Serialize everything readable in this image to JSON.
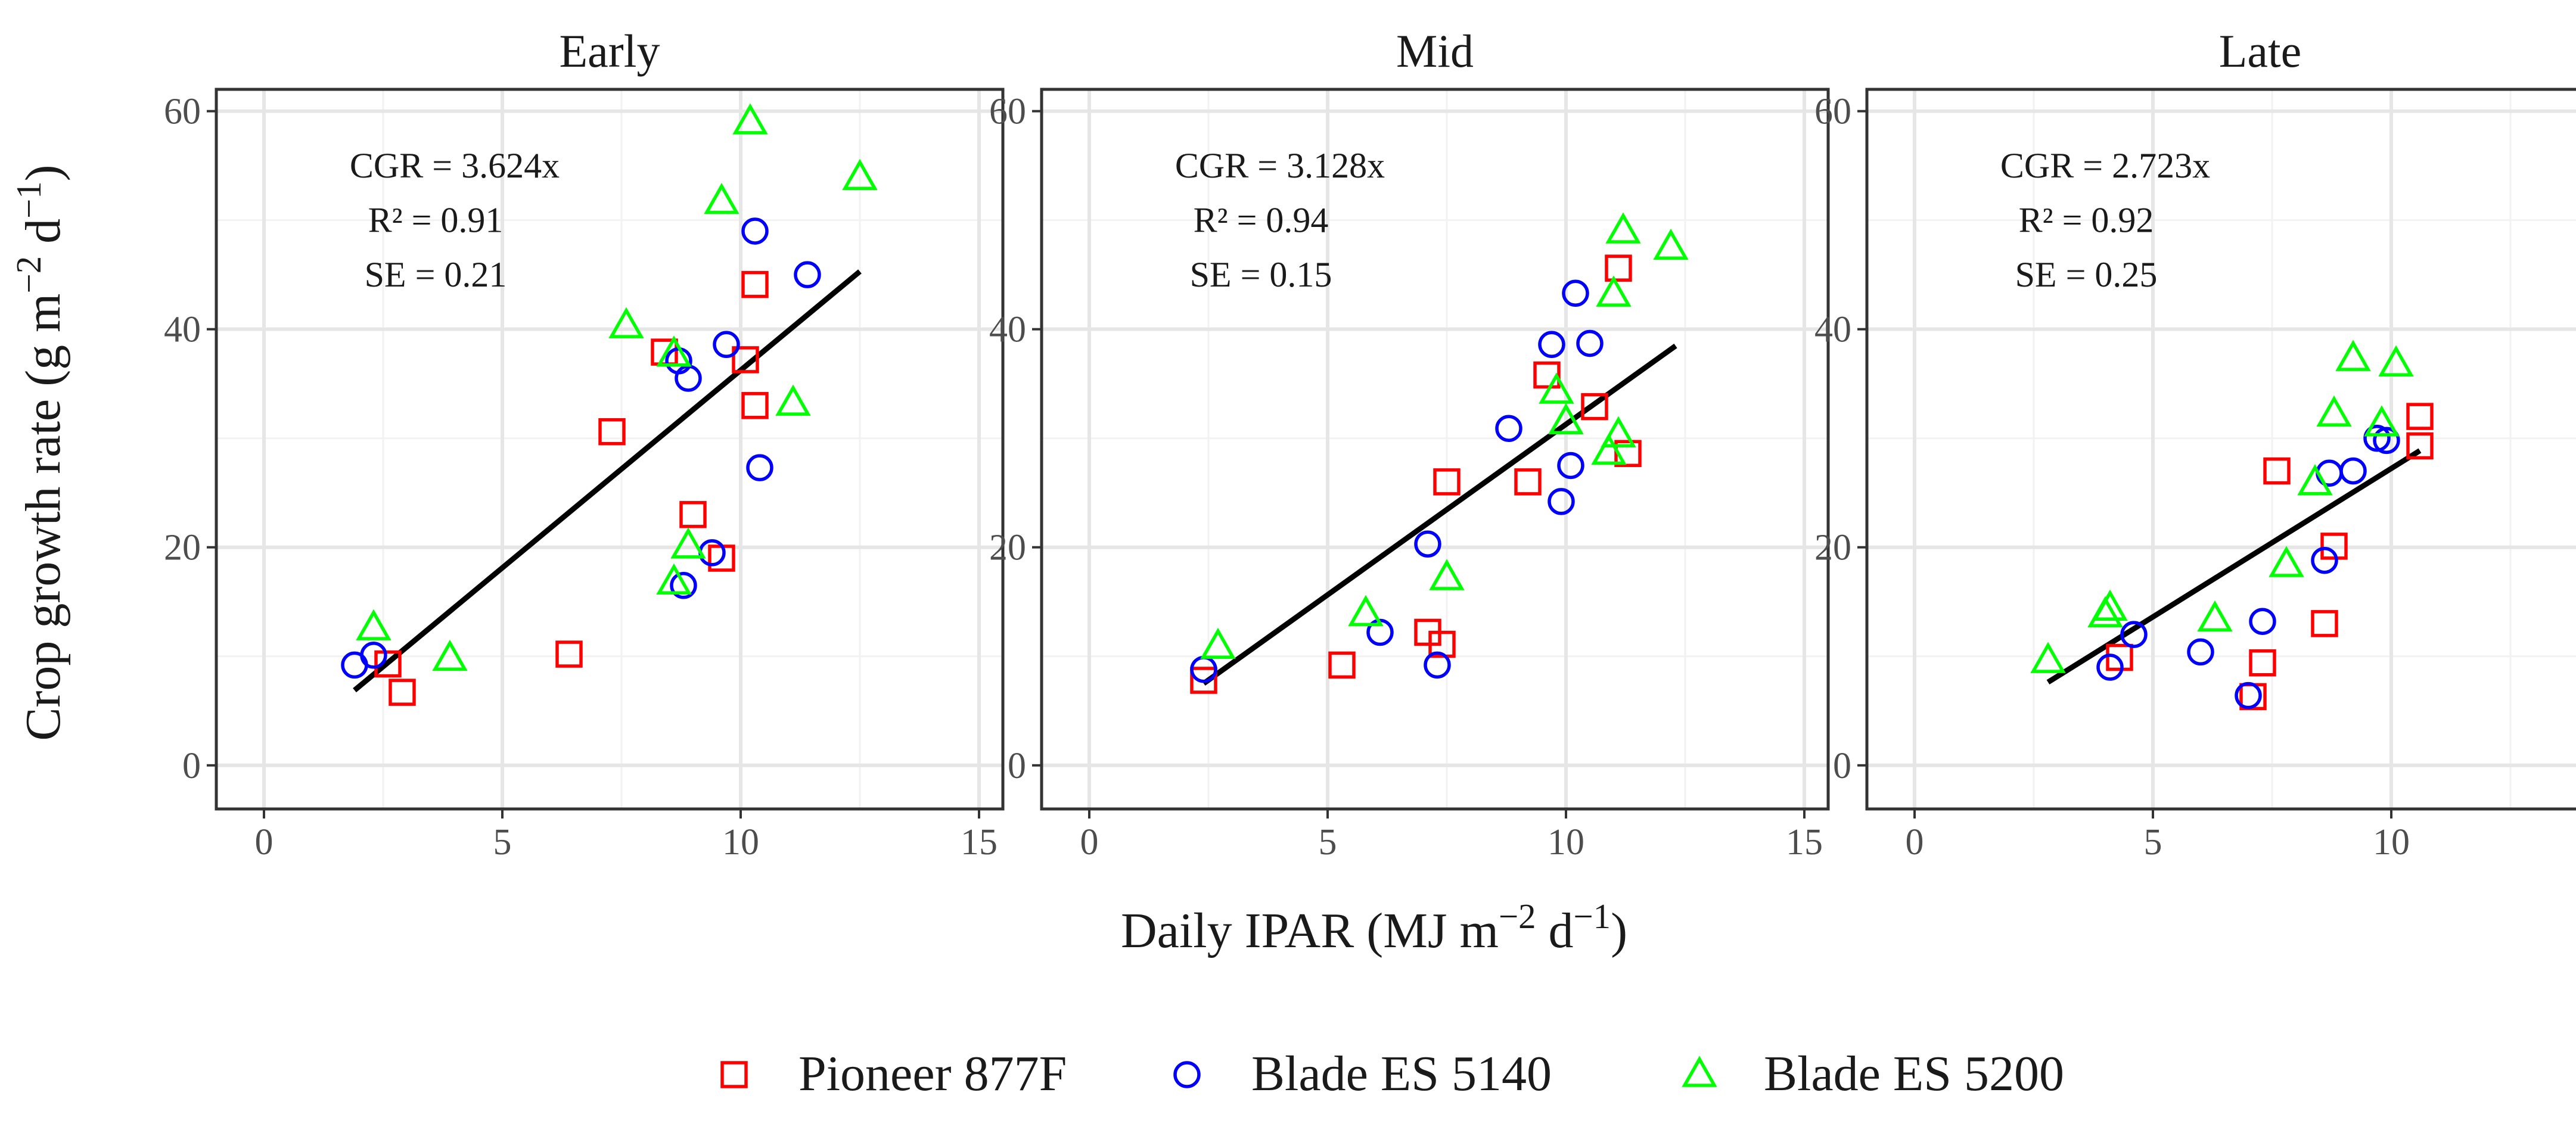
{
  "chart_data": {
    "type": "scatter",
    "xlabel": "Daily IPAR (MJ m⁻² d⁻¹)",
    "ylabel": "Crop growth rate (g m⁻² d⁻¹)",
    "xlim": [
      -1,
      15.5
    ],
    "ylim": [
      -4,
      62
    ],
    "xticks": [
      0,
      5,
      10,
      15
    ],
    "yticks": [
      0,
      20,
      40,
      60
    ],
    "grid": true,
    "legend": {
      "position": "bottom",
      "entries": [
        {
          "name": "Pioneer 877F",
          "marker": "square",
          "color": "#ff0000"
        },
        {
          "name": "Blade ES 5140",
          "marker": "circle",
          "color": "#0000ff"
        },
        {
          "name": "Blade ES 5200",
          "marker": "triangle",
          "color": "#00ff00"
        }
      ]
    },
    "panels": [
      {
        "title": "Early",
        "annotation": [
          "CGR = 3.624x",
          "R² = 0.91",
          "SE = 0.21"
        ],
        "slope": 3.624,
        "fit_x": [
          1.9,
          12.5
        ],
        "series": [
          {
            "name": "Pioneer 877F",
            "points": [
              [
                2.6,
                9.3
              ],
              [
                2.9,
                6.7
              ],
              [
                6.4,
                10.2
              ],
              [
                7.3,
                30.6
              ],
              [
                8.4,
                37.9
              ],
              [
                9.0,
                23.0
              ],
              [
                9.6,
                19.0
              ],
              [
                10.1,
                37.2
              ],
              [
                10.3,
                33.0
              ],
              [
                10.3,
                44.1
              ]
            ]
          },
          {
            "name": "Blade ES 5140",
            "points": [
              [
                1.9,
                9.2
              ],
              [
                2.3,
                10.1
              ],
              [
                8.7,
                37.1
              ],
              [
                8.9,
                35.5
              ],
              [
                8.8,
                16.5
              ],
              [
                9.4,
                19.5
              ],
              [
                9.7,
                38.6
              ],
              [
                10.3,
                49.0
              ],
              [
                10.4,
                27.3
              ],
              [
                11.4,
                45.0
              ]
            ]
          },
          {
            "name": "Blade ES 5200",
            "points": [
              [
                2.3,
                12.6
              ],
              [
                3.9,
                9.8
              ],
              [
                7.6,
                40.3
              ],
              [
                8.6,
                37.7
              ],
              [
                8.6,
                16.8
              ],
              [
                8.9,
                20.1
              ],
              [
                9.6,
                51.7
              ],
              [
                10.2,
                59.0
              ],
              [
                11.1,
                33.2
              ],
              [
                12.5,
                53.9
              ]
            ]
          }
        ]
      },
      {
        "title": "Mid",
        "annotation": [
          "CGR = 3.128x",
          "R² = 0.94",
          "SE = 0.15"
        ],
        "slope": 3.128,
        "fit_x": [
          2.4,
          12.3
        ],
        "series": [
          {
            "name": "Pioneer 877F",
            "points": [
              [
                2.4,
                7.8
              ],
              [
                5.3,
                9.2
              ],
              [
                7.1,
                12.2
              ],
              [
                7.4,
                11.1
              ],
              [
                7.5,
                26.0
              ],
              [
                9.2,
                26.0
              ],
              [
                9.6,
                35.8
              ],
              [
                10.6,
                32.9
              ],
              [
                11.1,
                45.6
              ],
              [
                11.3,
                28.6
              ]
            ]
          },
          {
            "name": "Blade ES 5140",
            "points": [
              [
                2.4,
                8.8
              ],
              [
                6.1,
                12.2
              ],
              [
                7.1,
                20.3
              ],
              [
                7.3,
                9.2
              ],
              [
                8.8,
                30.9
              ],
              [
                9.7,
                38.6
              ],
              [
                9.9,
                24.2
              ],
              [
                10.1,
                27.5
              ],
              [
                10.2,
                43.3
              ],
              [
                10.5,
                38.7
              ]
            ]
          },
          {
            "name": "Blade ES 5200",
            "points": [
              [
                2.7,
                10.9
              ],
              [
                5.8,
                13.9
              ],
              [
                7.5,
                17.2
              ],
              [
                9.8,
                34.3
              ],
              [
                10.0,
                31.5
              ],
              [
                10.9,
                28.7
              ],
              [
                11.0,
                43.2
              ],
              [
                11.1,
                30.3
              ],
              [
                11.2,
                49.0
              ],
              [
                12.2,
                47.5
              ]
            ]
          }
        ]
      },
      {
        "title": "Late",
        "annotation": [
          "CGR = 2.723x",
          "R² = 0.92",
          "SE = 0.25"
        ],
        "slope": 2.723,
        "fit_x": [
          2.8,
          10.6
        ],
        "series": [
          {
            "name": "Pioneer 877F",
            "points": [
              [
                4.3,
                9.9
              ],
              [
                7.1,
                6.3
              ],
              [
                7.3,
                9.4
              ],
              [
                7.6,
                27.0
              ],
              [
                8.6,
                13.0
              ],
              [
                8.8,
                20.1
              ],
              [
                10.6,
                29.3
              ],
              [
                10.6,
                32.0
              ]
            ]
          },
          {
            "name": "Blade ES 5140",
            "points": [
              [
                4.1,
                9.0
              ],
              [
                4.6,
                12.0
              ],
              [
                6.0,
                10.4
              ],
              [
                7.0,
                6.4
              ],
              [
                7.3,
                13.2
              ],
              [
                8.6,
                18.8
              ],
              [
                8.7,
                26.8
              ],
              [
                9.2,
                27.0
              ],
              [
                9.7,
                30.0
              ],
              [
                9.9,
                29.8
              ]
            ]
          },
          {
            "name": "Blade ES 5200",
            "points": [
              [
                2.8,
                9.6
              ],
              [
                4.0,
                13.8
              ],
              [
                4.1,
                14.4
              ],
              [
                6.3,
                13.4
              ],
              [
                7.8,
                18.4
              ],
              [
                8.4,
                25.9
              ],
              [
                8.8,
                32.2
              ],
              [
                9.2,
                37.3
              ],
              [
                9.8,
                31.3
              ],
              [
                10.1,
                36.8
              ]
            ]
          }
        ]
      }
    ]
  }
}
